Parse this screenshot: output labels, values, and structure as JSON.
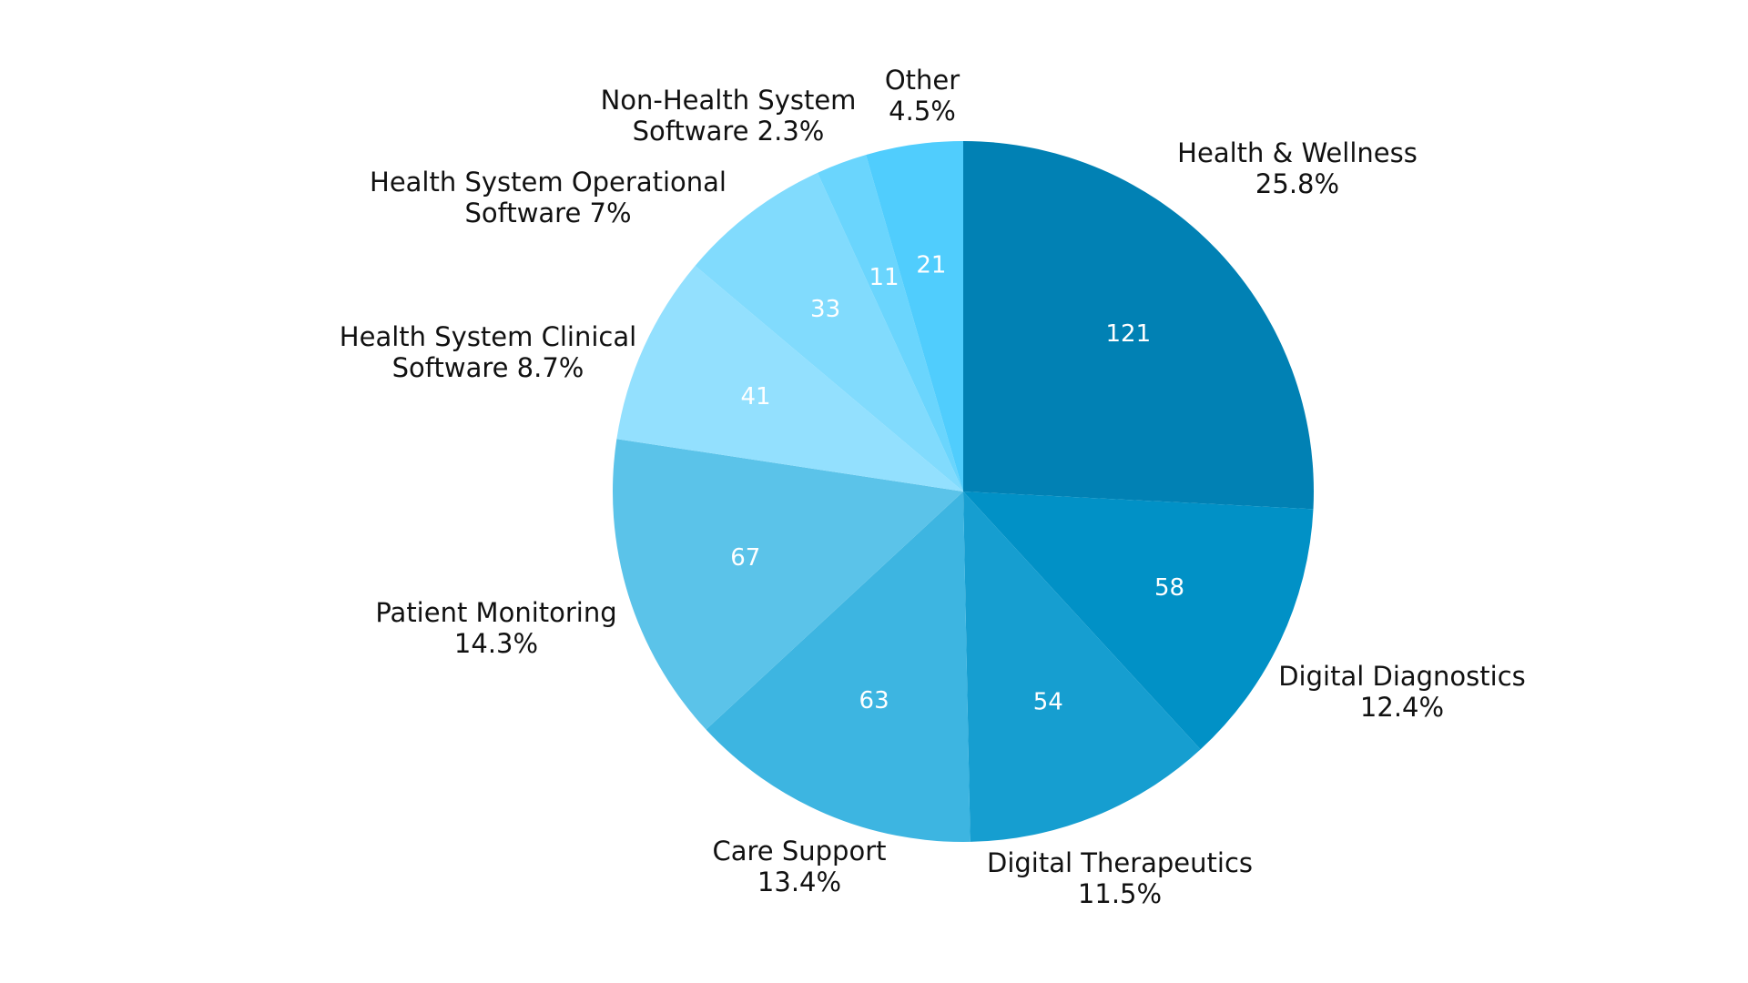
{
  "chart_data": {
    "type": "pie",
    "title": "",
    "start": "12 o'clock",
    "direction": "clockwise",
    "slices": [
      {
        "category": "Health & Wellness",
        "value": 121,
        "percent_label": "25.8%",
        "color": "#0181B4"
      },
      {
        "category": "Digital Diagnostics",
        "value": 58,
        "percent_label": "12.4%",
        "color": "#0191C6"
      },
      {
        "category": "Digital Therapeutics",
        "value": 54,
        "percent_label": "11.5%",
        "color": "#169ED0"
      },
      {
        "category": "Care Support",
        "value": 63,
        "percent_label": "13.4%",
        "color": "#3DB5E1"
      },
      {
        "category": "Patient Monitoring",
        "value": 67,
        "percent_label": "14.3%",
        "color": "#5BC3E9"
      },
      {
        "category": "Health System Clinical Software",
        "value": 41,
        "percent_label": "8.7%",
        "color": "#93E0FE"
      },
      {
        "category": "Health System Operational Software",
        "value": 33,
        "percent_label": "7%",
        "color": "#81DBFD"
      },
      {
        "category": "Non-Health System Software",
        "value": 11,
        "percent_label": "2.3%",
        "color": "#6AD5FD"
      },
      {
        "category": "Other",
        "value": 21,
        "percent_label": "4.5%",
        "color": "#50CDFD"
      }
    ]
  }
}
